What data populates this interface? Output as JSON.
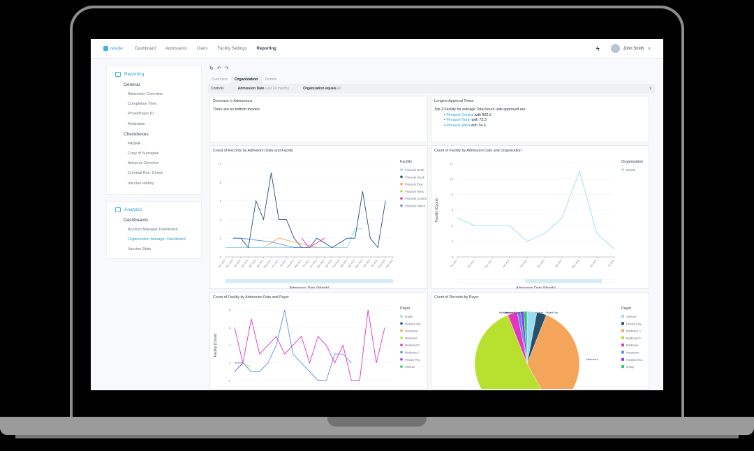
{
  "nav": {
    "brand": "reside",
    "links": [
      "Dashboard",
      "Admissions",
      "Users",
      "Facility Settings",
      "Reporting"
    ],
    "active": "Reporting",
    "user_name": "John Smith"
  },
  "sidebar": {
    "reporting": {
      "title": "Reporting",
      "groups": [
        {
          "label": "General",
          "items": [
            "Admission Overview",
            "Completion Time",
            "Photo/Payer ID",
            "Arbitration"
          ]
        },
        {
          "label": "Checkboxes",
          "items": [
            "PASRR",
            "Copy of Surrogate",
            "Advance Directive",
            "Criminal Rec. Check",
            "Vaccine History"
          ]
        }
      ]
    },
    "analytics": {
      "title": "Analytics",
      "groups": [
        {
          "label": "Dashboards",
          "items": [
            "Account Manager Dashboard",
            "Organization Manager Dashboard",
            "Vaccine Stats"
          ],
          "active": "Organization Manager Dashboard"
        }
      ]
    }
  },
  "main": {
    "tabs": [
      "Overview",
      "Organization",
      "Details"
    ],
    "active_tab": "Organization",
    "controls": {
      "label": "Controls",
      "filter1_name": "Admission Date",
      "filter1_value": "Last 24 months",
      "filter2_name": "Organization equals",
      "filter2_value": "All"
    },
    "decrease": {
      "title": "Decrease in Admissions",
      "text": "There are no bottom movers."
    },
    "approval": {
      "title": "Longest Approval Times",
      "intro": "Top 3 Facility for average Total hours until approved are:",
      "items": [
        {
          "name": "Pinnacle Central",
          "value": "with 802.5"
        },
        {
          "name": "Pinnacle North",
          "value": "with 72.3"
        },
        {
          "name": "Pinnacle West",
          "value": "with 34.6"
        }
      ]
    }
  },
  "chart_data": [
    {
      "type": "line",
      "title": "Count of Records by Admission Date and Facility",
      "xlabel": "Admission Date (Month)",
      "ylabel": "",
      "ylim": [
        0,
        10
      ],
      "yticks": [
        0,
        2,
        4,
        6,
        8,
        10
      ],
      "legend_title": "Facility",
      "categories": [
        "Nov 2020",
        "Dec 2020",
        "Jan 2021",
        "Feb 2021",
        "Mar 2021",
        "Apr 2021",
        "May 2021",
        "Jun 2021",
        "Jul 2021",
        "Aug 2021",
        "Sep 2021",
        "Oct 2021",
        "Nov 2021",
        "Dec 2021",
        "Jan 2022",
        "Feb 2022",
        "Mar 2022",
        "Apr 2022",
        "May 2022",
        "Jun 2022",
        "Jul 2022",
        "Aug 2022",
        "Sep 2022"
      ],
      "series": [
        {
          "name": "Pinnacle North",
          "color": "#8fd3ec",
          "values": [
            1,
            1,
            1,
            1,
            1,
            1,
            1,
            1,
            1,
            1,
            1,
            1,
            1,
            1,
            1,
            1,
            1,
            3,
            3,
            null,
            null,
            null,
            null
          ]
        },
        {
          "name": "Pinnacle South",
          "color": "#1f4e79",
          "values": [
            null,
            2,
            2,
            1,
            6,
            4,
            9,
            4,
            4,
            2,
            1,
            1,
            2,
            1.5,
            1,
            1.5,
            2,
            2,
            7,
            2,
            1,
            6,
            null
          ]
        },
        {
          "name": "Pinnacle East",
          "color": "#f5a55a",
          "values": [
            null,
            null,
            null,
            null,
            null,
            1,
            1.5,
            2,
            1.8,
            1.6,
            1.4,
            1.2,
            1,
            null,
            null,
            null,
            null,
            null,
            null,
            null,
            null,
            null,
            null
          ]
        },
        {
          "name": "Pinnacle West",
          "color": "#b8e02e",
          "values": [
            6,
            null,
            null,
            null,
            null,
            null,
            null,
            1,
            null,
            null,
            null,
            null,
            null,
            null,
            null,
            null,
            null,
            null,
            null,
            null,
            null,
            null,
            null
          ]
        },
        {
          "name": "Pinnacle Central",
          "color": "#e633c2",
          "values": [
            null,
            null,
            null,
            null,
            null,
            null,
            null,
            null,
            null,
            null,
            2,
            1,
            1.5,
            2,
            null,
            null,
            null,
            null,
            null,
            null,
            null,
            null,
            null
          ]
        },
        {
          "name": "Pinnacle Manor",
          "color": "#5b8ee6",
          "values": [
            null,
            null,
            2,
            1.9,
            1.8,
            1.7,
            1.6,
            1.4,
            1.2,
            1,
            1,
            1,
            null,
            null,
            null,
            null,
            null,
            null,
            null,
            null,
            null,
            null,
            null
          ]
        }
      ]
    },
    {
      "type": "line",
      "title": "Count of Facility by Admission Date and Organization",
      "xlabel": "Admission Date (Month)",
      "ylabel": "Facility (Count)",
      "ylim": [
        0,
        12
      ],
      "yticks": [
        0,
        2,
        4,
        6,
        8,
        10,
        12
      ],
      "legend_title": "Organization",
      "categories": [
        "Oct 2021",
        "Nov 2021",
        "Dec 2021",
        "Jan 2022",
        "Feb 2022",
        "Mar 2022",
        "Apr 2022",
        "May 2022",
        "Jun 2022",
        "Jul 2022"
      ],
      "series": [
        {
          "name": "Reside",
          "color": "#9bdcf0",
          "values": [
            5,
            4,
            4,
            4,
            2,
            3,
            5,
            11,
            3,
            1
          ]
        }
      ]
    },
    {
      "type": "line",
      "title": "Count of Facility by Admission Date and Payer",
      "xlabel": "",
      "ylabel": "Facility (Count)",
      "ylim": [
        0,
        8
      ],
      "yticks": [
        0,
        2,
        4,
        6,
        8
      ],
      "legend_title": "Payer",
      "series": [
        {
          "name": "empty",
          "color": "#8fd3ec",
          "values": []
        },
        {
          "name": "Hospice Mo...",
          "color": "#1f4e79",
          "values": []
        },
        {
          "name": "Insurance",
          "color": "#f5a55a",
          "values": []
        },
        {
          "name": "Medicaid",
          "color": "#b8e02e",
          "values": [
            2,
            2,
            1.5
          ]
        },
        {
          "name": "Medicaid P...",
          "color": "#e633c2",
          "values": [
            6,
            2,
            7,
            3,
            4,
            5,
            3,
            4,
            5,
            2,
            5,
            4,
            2,
            4,
            0,
            0,
            8,
            2,
            6
          ]
        },
        {
          "name": "Medicare A",
          "color": "#5b8ee6",
          "values": [
            2,
            2,
            1,
            1,
            2,
            4,
            8,
            3,
            2,
            1,
            0,
            0,
            3,
            3,
            2
          ]
        },
        {
          "name": "Private Pay",
          "color": "#8a3ff0",
          "values": [
            1,
            2
          ]
        },
        {
          "name": "Veteran",
          "color": "#2ecc71",
          "values": []
        }
      ]
    },
    {
      "type": "pie",
      "title": "Count of Records by Payer",
      "legend_title": "Payer",
      "slices": [
        {
          "label": "Veteran",
          "color": "#9bdcf0",
          "value": 3
        },
        {
          "label": "Private Pay",
          "color": "#27506b",
          "value": 3
        },
        {
          "label": "Medicare A",
          "color": "#f5a55a",
          "value": 36
        },
        {
          "label": "Medicaid P...",
          "color": "#b8e02e",
          "value": 52
        },
        {
          "label": "Medicaid",
          "color": "#e633c2",
          "value": 3
        },
        {
          "label": "Insurance",
          "color": "#5b8ee6",
          "value": 1
        },
        {
          "label": "Hospice Mo...",
          "color": "#8a3ff0",
          "value": 1
        },
        {
          "label": "empty",
          "color": "#2ecc71",
          "value": 1
        }
      ]
    }
  ]
}
